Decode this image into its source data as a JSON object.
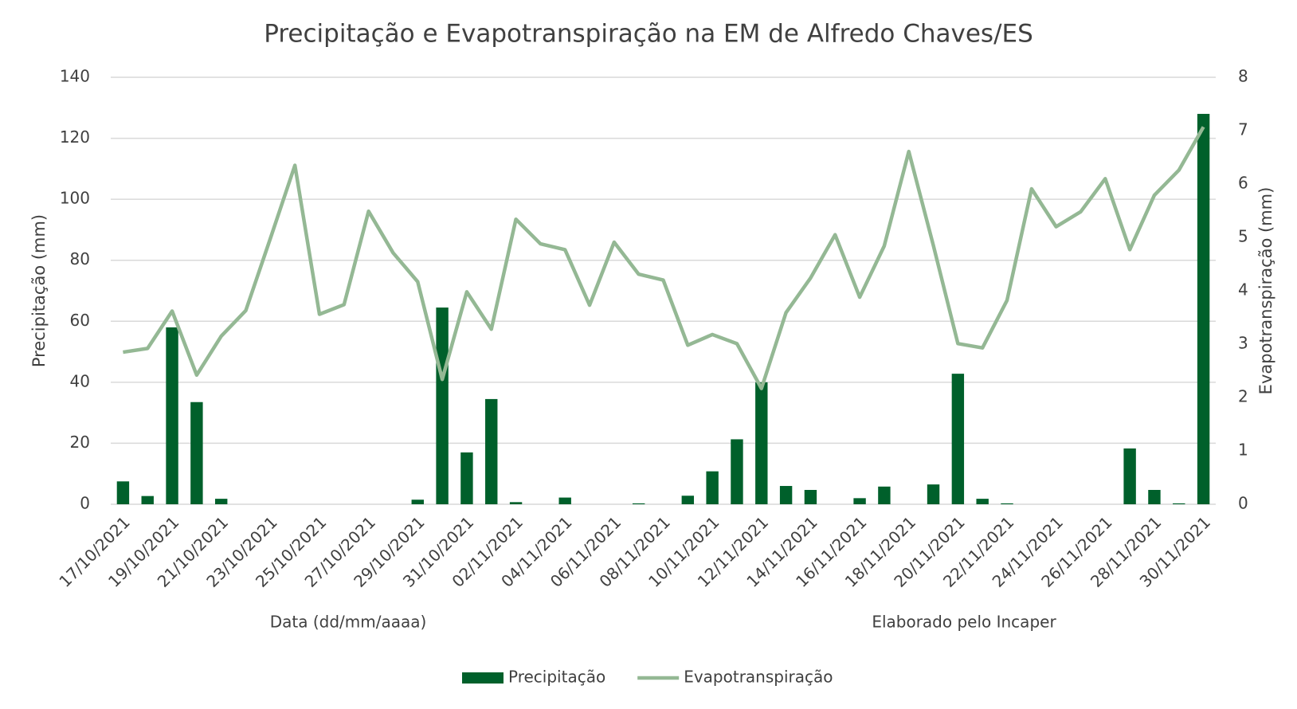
{
  "chart_data": {
    "type": "bar-line",
    "title": "Precipitação e Evapotranspiração na EM de Alfredo Chaves/ES",
    "ylabel": "Precipitação (mm)",
    "y2label": "Evapotranspiração (mm)",
    "xlabel": "Data (dd/mm/aaaa)",
    "annotation": "Elaborado pelo Incaper",
    "categories": [
      "17/10/2021",
      null,
      "19/10/2021",
      null,
      "21/10/2021",
      null,
      "23/10/2021",
      null,
      "25/10/2021",
      null,
      "27/10/2021",
      null,
      "29/10/2021",
      null,
      "31/10/2021",
      null,
      "02/11/2021",
      null,
      "04/11/2021",
      null,
      "06/11/2021",
      null,
      "08/11/2021",
      null,
      "10/11/2021",
      null,
      "12/11/2021",
      null,
      "14/11/2021",
      null,
      "16/11/2021",
      null,
      "18/11/2021",
      null,
      "20/11/2021",
      null,
      "22/11/2021",
      null,
      "24/11/2021",
      null,
      "26/11/2021",
      null,
      "28/11/2021",
      null,
      "30/11/2021"
    ],
    "series": [
      {
        "name": "Precipitação",
        "type": "bar",
        "color": "#00602b",
        "values": [
          7.5,
          2.7,
          58,
          33.5,
          1.8,
          0,
          0,
          0,
          0,
          0,
          0,
          0,
          1.5,
          64.5,
          17,
          34.5,
          0.7,
          0,
          2.2,
          0,
          0,
          0.3,
          0,
          2.8,
          10.8,
          21.3,
          40,
          6,
          4.7,
          0,
          2,
          5.8,
          0,
          6.5,
          42.8,
          1.8,
          0.3,
          0,
          0,
          0,
          0,
          18.3,
          4.7,
          0.3,
          128
        ]
      },
      {
        "name": "Evapotranspiração",
        "type": "line",
        "axis": "y2",
        "color": "#94b894",
        "values": [
          2.85,
          2.92,
          3.62,
          2.42,
          3.15,
          3.63,
          4.98,
          6.35,
          3.56,
          3.74,
          5.49,
          4.71,
          4.17,
          2.34,
          3.98,
          3.28,
          5.34,
          4.88,
          4.77,
          3.73,
          4.91,
          4.31,
          4.2,
          2.98,
          3.18,
          3.01,
          2.17,
          3.59,
          4.24,
          5.05,
          3.88,
          4.84,
          6.61,
          4.85,
          3.01,
          2.93,
          3.82,
          5.91,
          5.2,
          5.48,
          6.1,
          4.77,
          5.79,
          6.26,
          7.07
        ]
      }
    ],
    "ylim": [
      0,
      140
    ],
    "yticks": [
      0,
      20,
      40,
      60,
      80,
      100,
      120,
      140
    ],
    "y2lim": [
      0,
      8
    ],
    "y2ticks": [
      0,
      1,
      2,
      3,
      4,
      5,
      6,
      7,
      8
    ],
    "grid": true,
    "legend": "bottom"
  }
}
